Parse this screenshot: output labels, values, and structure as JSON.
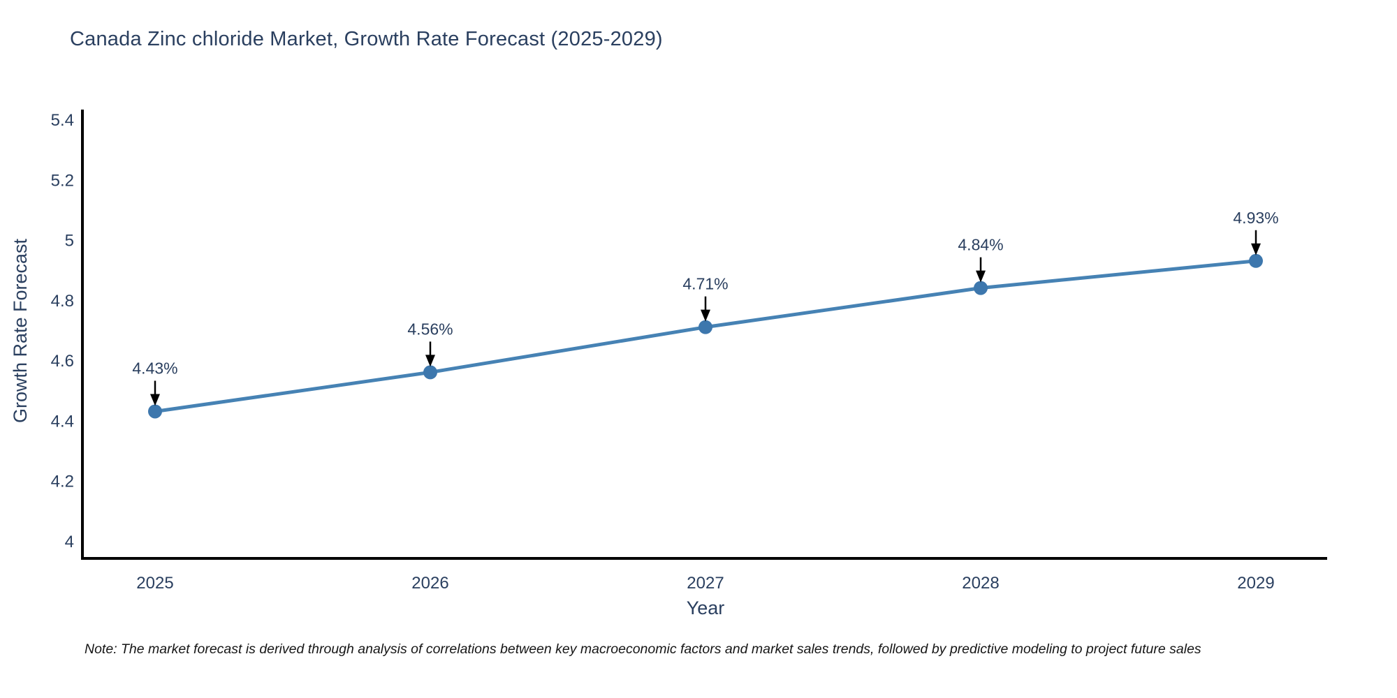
{
  "note": "Note: The market forecast is derived through analysis of correlations between key macroeconomic factors and market sales trends, followed by predictive modeling to project future sales",
  "chart_data": {
    "type": "line",
    "title": "Canada Zinc chloride Market, Growth Rate Forecast (2025-2029)",
    "xlabel": "Year",
    "ylabel": "Growth Rate Forecast",
    "x": [
      2025,
      2026,
      2027,
      2028,
      2029
    ],
    "y": [
      4.43,
      4.56,
      4.71,
      4.84,
      4.93
    ],
    "point_labels": [
      "4.43%",
      "4.56%",
      "4.71%",
      "4.84%",
      "4.93%"
    ],
    "xtick_labels": [
      "2025",
      "2026",
      "2027",
      "2028",
      "2029"
    ],
    "ytick_values": [
      4,
      4.2,
      4.4,
      4.6,
      4.8,
      5,
      5.2,
      5.4
    ],
    "ytick_labels": [
      "4",
      "4.2",
      "4.4",
      "4.6",
      "4.8",
      "5",
      "5.2",
      "5.4"
    ],
    "ylim": [
      3.94,
      5.43
    ],
    "xlim": [
      2024.74,
      2029.26
    ],
    "grid": false,
    "legend_position": "none",
    "line_color": "#4682b4",
    "marker_color": "#3d77ad",
    "arrow_color": "#000000",
    "axis_color": "#000000",
    "text_color": "#2a3f5f"
  }
}
